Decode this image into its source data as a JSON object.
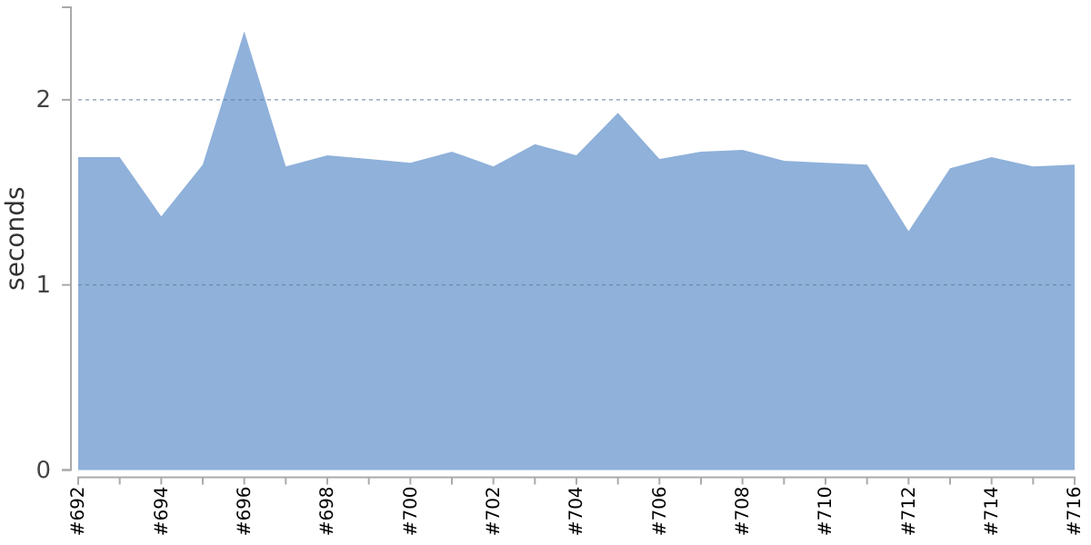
{
  "chart_data": {
    "type": "area",
    "ylabel": "seconds",
    "categories": [
      "#692",
      null,
      "#694",
      null,
      "#696",
      null,
      "#698",
      null,
      "#700",
      null,
      "#702",
      null,
      "#704",
      null,
      "#706",
      null,
      "#708",
      null,
      "#710",
      null,
      "#712",
      null,
      "#714",
      null,
      "#716"
    ],
    "series": [
      {
        "color": "#8fb1da",
        "values": [
          1.69,
          1.69,
          1.37,
          1.65,
          2.37,
          1.64,
          1.7,
          1.68,
          1.66,
          1.72,
          1.64,
          1.76,
          1.7,
          1.93,
          1.68,
          1.72,
          1.73,
          1.67,
          1.66,
          1.65,
          1.29,
          1.63,
          1.69,
          1.64,
          1.65
        ]
      }
    ],
    "ylim": [
      0,
      2.5
    ],
    "yticks": [
      0,
      1,
      2
    ],
    "grid": "y"
  }
}
